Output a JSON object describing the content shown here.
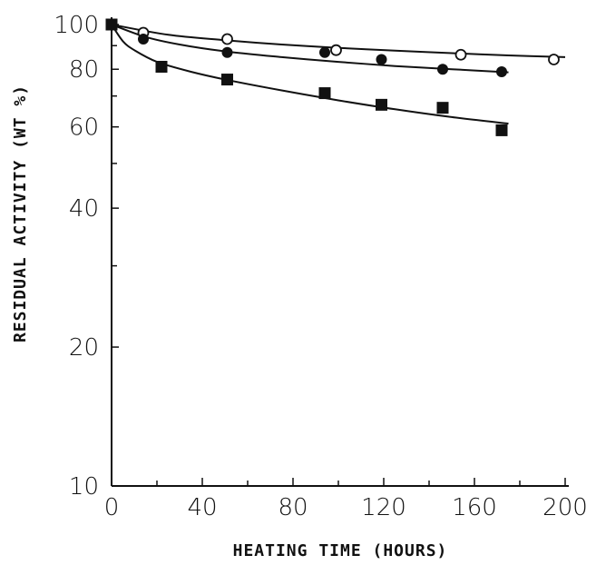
{
  "chart_data": {
    "type": "scatter",
    "xlabel": "HEATING TIME (HOURS)",
    "ylabel": "RESIDUAL ACTIVITY (WT %)",
    "y_scale": "log",
    "xlim": [
      0,
      200
    ],
    "ylim": [
      10,
      100
    ],
    "x_ticks": [
      0,
      40,
      80,
      120,
      160,
      200
    ],
    "x_ticks_minor": [
      20,
      60,
      100,
      140,
      180
    ],
    "y_tick_labels": [
      100,
      80,
      60,
      40,
      20,
      10
    ],
    "y_ticks_minor": [
      30,
      50,
      70,
      90
    ],
    "grid": false,
    "series": [
      {
        "marker": "open-circle",
        "color": "#111111",
        "points": [
          [
            0,
            100
          ],
          [
            14,
            96
          ],
          [
            51,
            93
          ],
          [
            99,
            88
          ],
          [
            154,
            86
          ],
          [
            195,
            84
          ]
        ],
        "fit": [
          [
            0,
            100
          ],
          [
            25,
            95
          ],
          [
            50,
            92.5
          ],
          [
            75,
            90.5
          ],
          [
            100,
            89
          ],
          [
            125,
            87.8
          ],
          [
            150,
            86.7
          ],
          [
            175,
            85.7
          ],
          [
            200,
            85
          ]
        ]
      },
      {
        "marker": "filled-circle",
        "color": "#111111",
        "points": [
          [
            0,
            100
          ],
          [
            14,
            93
          ],
          [
            51,
            87
          ],
          [
            94,
            87
          ],
          [
            119,
            84
          ],
          [
            146,
            80
          ],
          [
            172,
            79
          ]
        ],
        "fit": [
          [
            0,
            100
          ],
          [
            15,
            94
          ],
          [
            30,
            90.5
          ],
          [
            50,
            87.5
          ],
          [
            75,
            85
          ],
          [
            100,
            83
          ],
          [
            125,
            81.3
          ],
          [
            150,
            80
          ],
          [
            175,
            78.8
          ]
        ]
      },
      {
        "marker": "filled-square",
        "color": "#111111",
        "points": [
          [
            0,
            100
          ],
          [
            22,
            81
          ],
          [
            51,
            76
          ],
          [
            94,
            71
          ],
          [
            119,
            67
          ],
          [
            146,
            66
          ],
          [
            172,
            59
          ]
        ],
        "fit": [
          [
            0,
            100
          ],
          [
            5,
            92
          ],
          [
            10,
            88
          ],
          [
            20,
            83
          ],
          [
            35,
            79
          ],
          [
            50,
            76
          ],
          [
            75,
            72
          ],
          [
            100,
            68.5
          ],
          [
            125,
            65.5
          ],
          [
            150,
            63
          ],
          [
            175,
            61
          ]
        ]
      }
    ]
  }
}
